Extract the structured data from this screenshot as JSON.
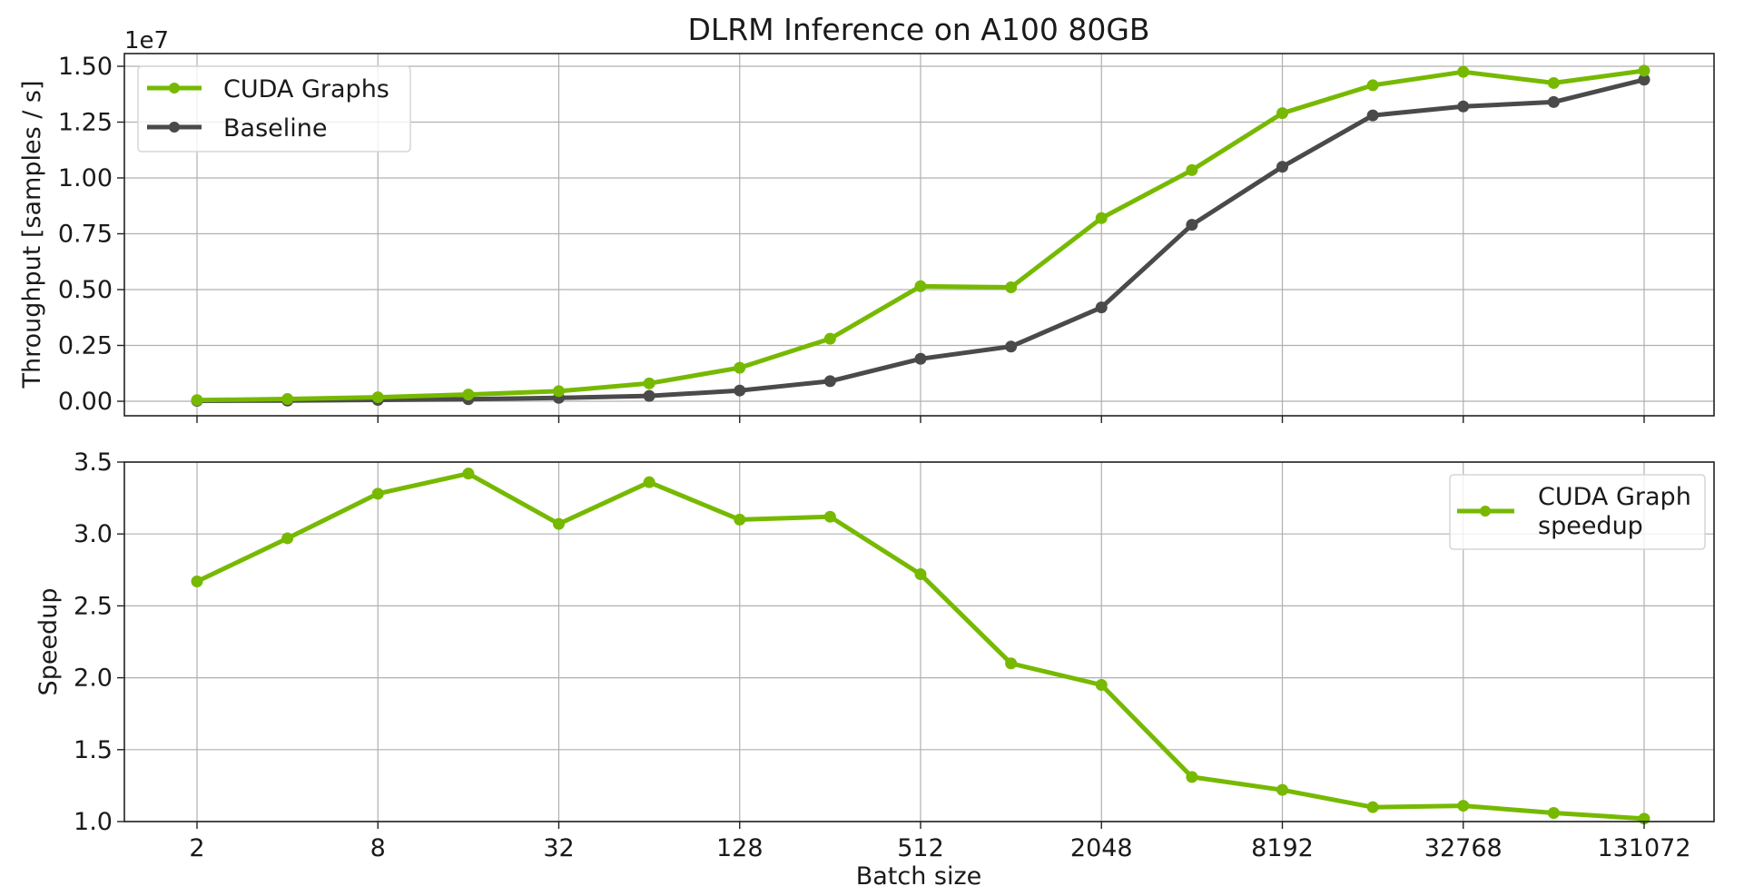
{
  "chart_data": [
    {
      "type": "line",
      "title": "DLRM Inference on A100 80GB",
      "xlabel": "",
      "ylabel": "Throughput [samples / s]",
      "y_offset_label": "1e7",
      "x_scale": "log2",
      "x": [
        2,
        4,
        8,
        16,
        32,
        64,
        128,
        256,
        512,
        1024,
        2048,
        4096,
        8192,
        16384,
        32768,
        65536,
        131072
      ],
      "xticks": [
        2,
        8,
        32,
        128,
        512,
        2048,
        8192,
        32768,
        131072
      ],
      "yticks": [
        "0.00",
        "0.25",
        "0.50",
        "0.75",
        "1.00",
        "1.25",
        "1.50"
      ],
      "ylim": [
        -0.08,
        1.58
      ],
      "grid": true,
      "legend_position": "upper left",
      "series": [
        {
          "name": "CUDA Graphs",
          "color": "#76b900",
          "values": [
            0.005,
            0.01,
            0.018,
            0.03,
            0.045,
            0.08,
            0.15,
            0.28,
            0.515,
            0.51,
            0.82,
            1.035,
            1.29,
            1.415,
            1.475,
            1.425,
            1.48
          ]
        },
        {
          "name": "Baseline",
          "color": "#4a4a4a",
          "values": [
            0.002,
            0.003,
            0.006,
            0.009,
            0.015,
            0.024,
            0.048,
            0.09,
            0.19,
            0.245,
            0.42,
            0.79,
            1.05,
            1.28,
            1.32,
            1.34,
            1.44
          ]
        }
      ]
    },
    {
      "type": "line",
      "title": "",
      "xlabel": "Batch size",
      "ylabel": "Speedup",
      "x_scale": "log2",
      "x": [
        2,
        4,
        8,
        16,
        32,
        64,
        128,
        256,
        512,
        1024,
        2048,
        4096,
        8192,
        16384,
        32768,
        65536,
        131072
      ],
      "xticks": [
        2,
        8,
        32,
        128,
        512,
        2048,
        8192,
        32768,
        131072
      ],
      "yticks": [
        "1.0",
        "1.5",
        "2.0",
        "2.5",
        "3.0",
        "3.5"
      ],
      "ylim": [
        1.0,
        3.5
      ],
      "grid": true,
      "legend_position": "upper right",
      "series": [
        {
          "name": "CUDA Graph speedup",
          "legend_lines": [
            "CUDA Graph",
            "speedup"
          ],
          "color": "#76b900",
          "values": [
            2.67,
            2.97,
            3.28,
            3.42,
            3.07,
            3.36,
            3.1,
            3.12,
            2.72,
            2.1,
            1.95,
            1.31,
            1.22,
            1.1,
            1.11,
            1.06,
            1.02
          ]
        }
      ]
    }
  ]
}
